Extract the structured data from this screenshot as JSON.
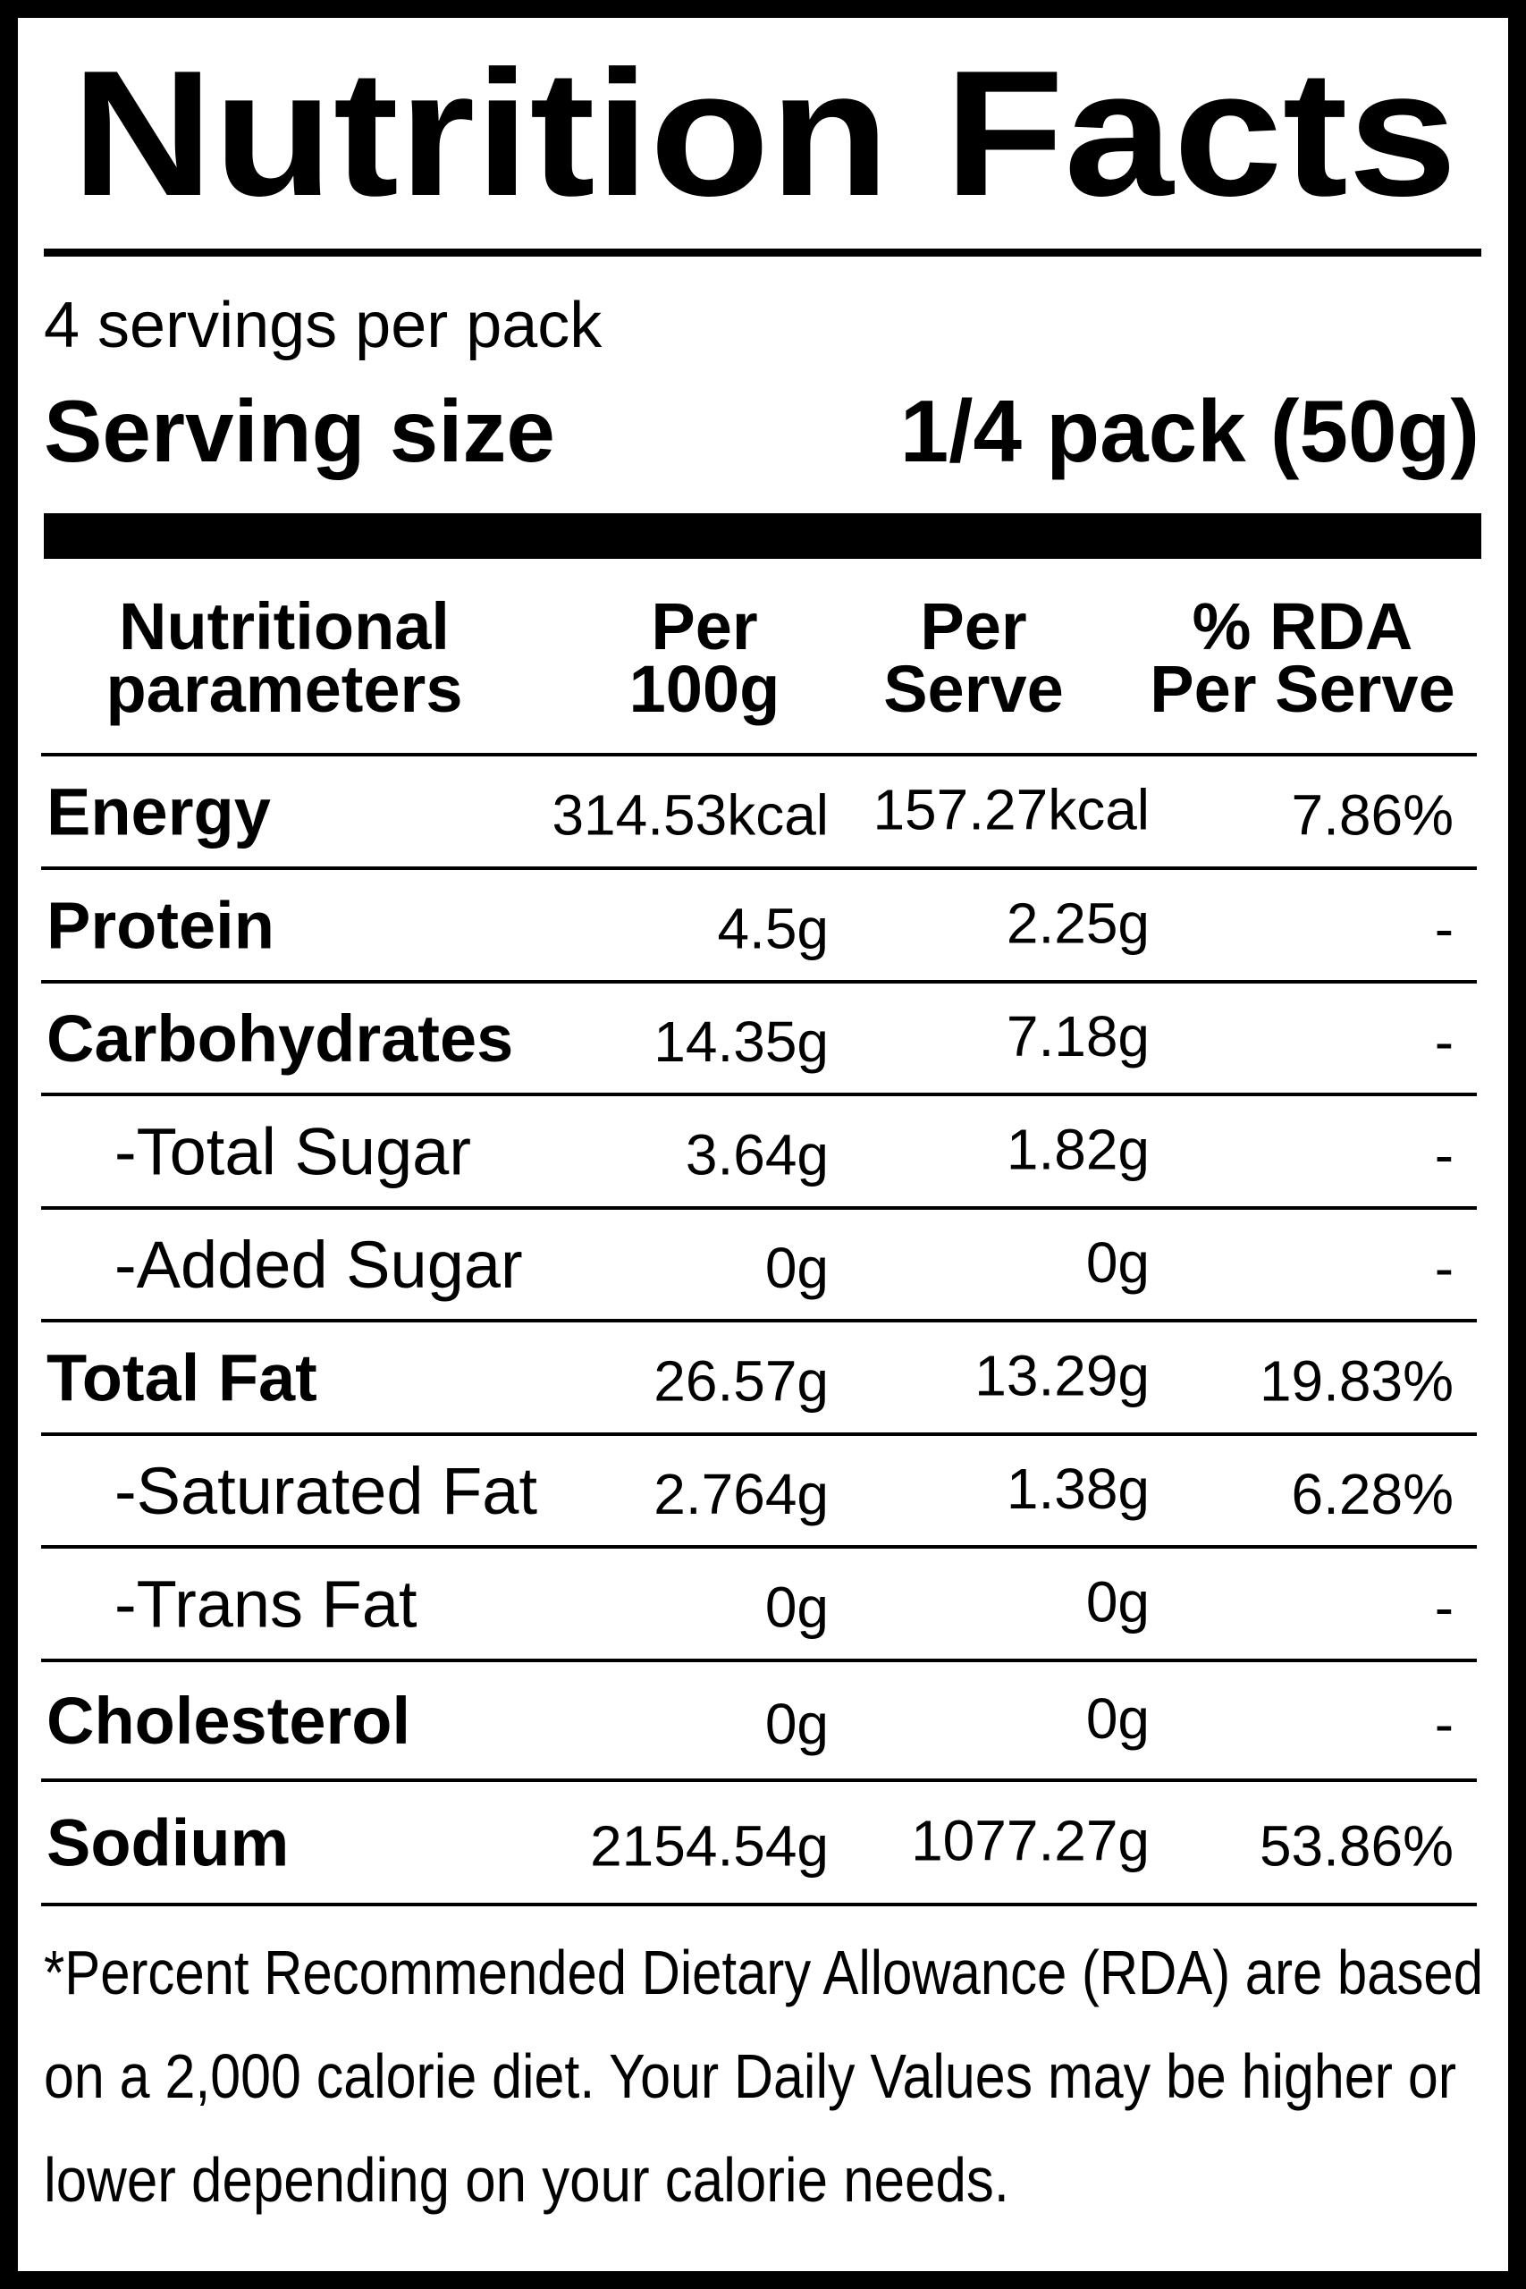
{
  "title": "Nutrition Facts",
  "servings": "4 servings per pack",
  "serving_size": {
    "label": "Serving size",
    "value": "1/4 pack (50g)"
  },
  "table": {
    "header": [
      [
        "Nutritional",
        "parameters"
      ],
      [
        "Per",
        "100g"
      ],
      [
        "Per",
        "Serve"
      ],
      [
        "% RDA",
        "Per Serve"
      ]
    ],
    "rows": [
      [
        "Energy",
        "314.53kcal",
        "157.27kcal",
        "7.86%"
      ],
      [
        "Protein",
        "4.5g",
        "2.25g",
        "-"
      ],
      [
        "Carbohydrates",
        "14.35g",
        "7.18g",
        "-"
      ],
      [
        "-Total Sugar",
        "3.64g",
        "1.82g",
        "-"
      ],
      [
        "-Added Sugar",
        "0g",
        "0g",
        "-"
      ],
      [
        "Total Fat",
        "26.57g",
        "13.29g",
        "19.83%"
      ],
      [
        "-Saturated Fat",
        "2.764g",
        "1.38g",
        "6.28%"
      ],
      [
        "-Trans Fat",
        "0g",
        "0g",
        "-"
      ],
      [
        "Cholesterol",
        "0g",
        "0g",
        "-"
      ],
      [
        "Sodium",
        "2154.54g",
        "1077.27g",
        "53.86%"
      ]
    ]
  },
  "footnote": [
    "*Percent Recommended Dietary Allowance (RDA) are based",
    "on a 2,000 calorie diet. Your Daily Values may be higher or",
    "lower depending on your calorie needs."
  ]
}
